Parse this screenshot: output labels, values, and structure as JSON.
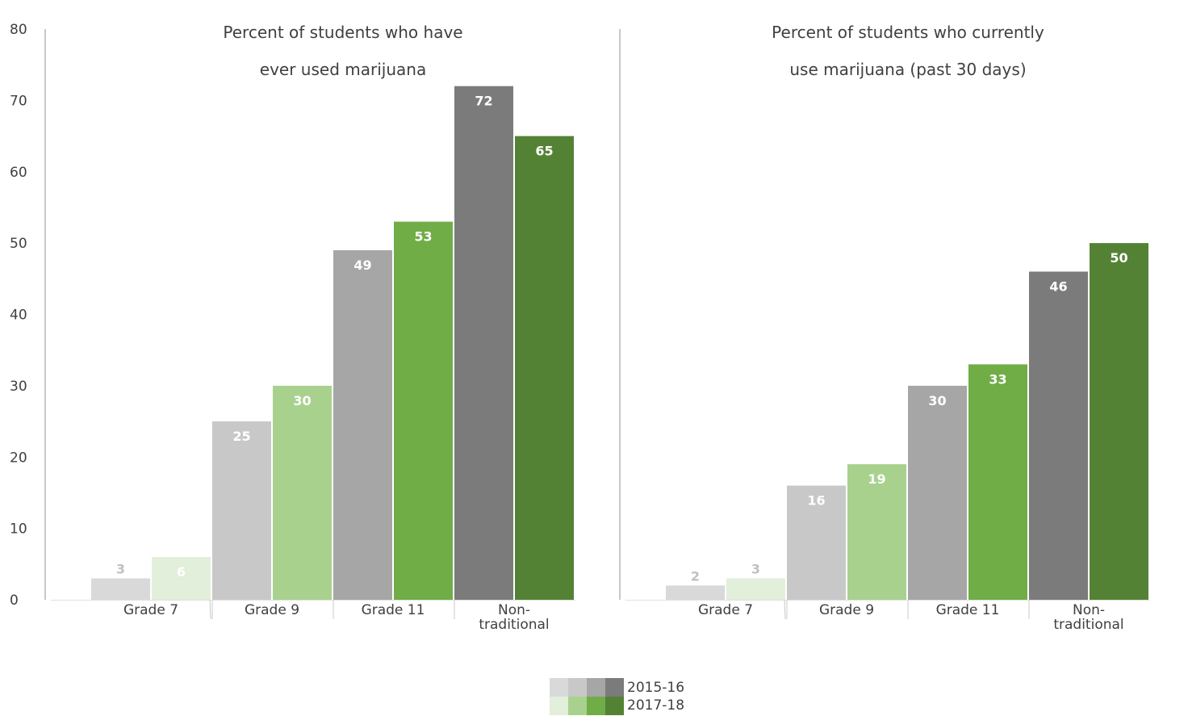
{
  "chart_data": [
    {
      "type": "bar",
      "title": "Percent of students who have ever used marijuana",
      "title_lines": [
        "Percent of students who have",
        "ever used marijuana"
      ],
      "categories": [
        "Grade 7",
        "Grade 9",
        "Grade 11",
        "Non-traditional"
      ],
      "category_label_lines": [
        [
          "Grade 7"
        ],
        [
          "Grade 9"
        ],
        [
          "Grade 11"
        ],
        [
          "Non-",
          "traditional"
        ]
      ],
      "series": [
        {
          "name": "2015-16",
          "values": [
            3,
            25,
            49,
            72
          ]
        },
        {
          "name": "2017-18",
          "values": [
            6,
            30,
            53,
            65
          ]
        }
      ],
      "ylim": [
        0,
        80
      ],
      "yticks": [
        0,
        10,
        20,
        30,
        40,
        50,
        60,
        70,
        80
      ],
      "grid": false
    },
    {
      "type": "bar",
      "title": "Percent of students who currently use marijuana (past 30 days)",
      "title_lines": [
        "Percent of students who currently",
        "use marijuana (past 30 days)"
      ],
      "categories": [
        "Grade 7",
        "Grade 9",
        "Grade 11",
        "Non-traditional"
      ],
      "category_label_lines": [
        [
          "Grade 7"
        ],
        [
          "Grade 9"
        ],
        [
          "Grade 11"
        ],
        [
          "Non-",
          "traditional"
        ]
      ],
      "series": [
        {
          "name": "2015-16",
          "values": [
            2,
            16,
            30,
            46
          ]
        },
        {
          "name": "2017-18",
          "values": [
            3,
            19,
            33,
            50
          ]
        }
      ],
      "ylim": [
        0,
        80
      ],
      "grid": false
    }
  ],
  "colors": {
    "2015-16": [
      "#d9d9d9",
      "#c8c8c8",
      "#a6a6a6",
      "#7b7b7b"
    ],
    "2017-18": [
      "#e2efda",
      "#a9d18e",
      "#70ad47",
      "#548235"
    ],
    "axis": "#c8c8c8",
    "label_on_bar": "#ffffff",
    "label_above_bar": "#c0c0c0",
    "text": "#404040"
  },
  "legend": {
    "placement": "bottom-center",
    "items": [
      "2015-16",
      "2017-18"
    ]
  }
}
